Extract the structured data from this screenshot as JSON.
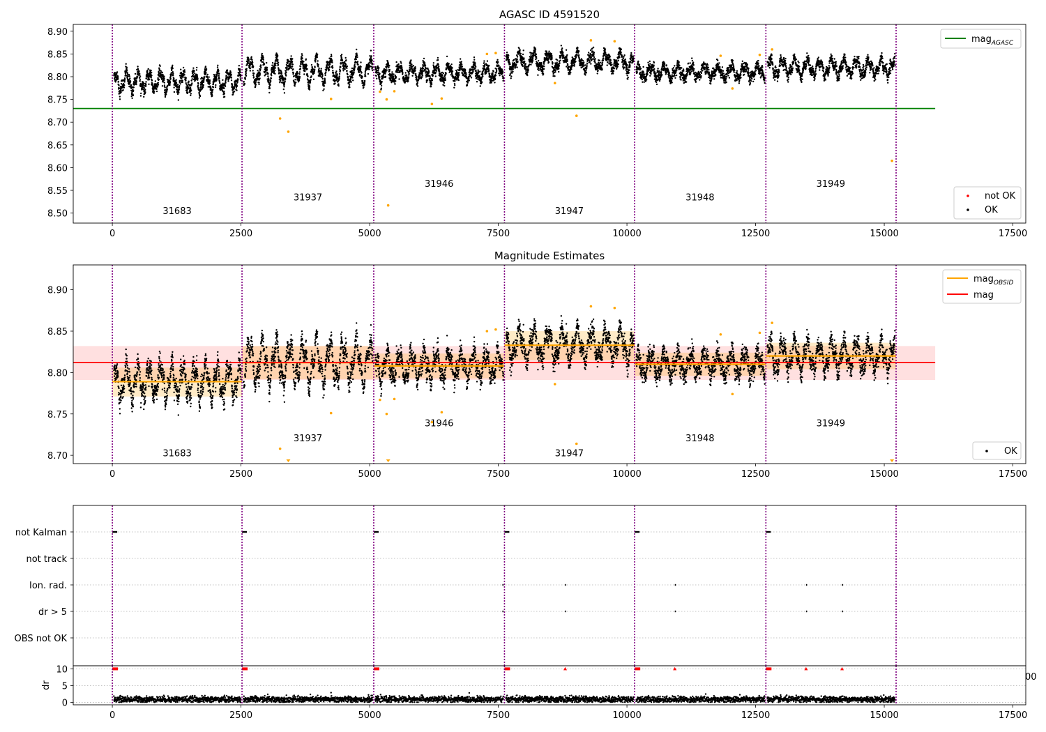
{
  "chart_data": [
    {
      "type": "scatter",
      "title": "AGASC ID 4591520",
      "xlim": [
        -760,
        17750
      ],
      "ylim": [
        8.478,
        8.915
      ],
      "xticks": [
        0,
        2500,
        5000,
        7500,
        10000,
        12500,
        15000,
        17500
      ],
      "yticks": [
        8.5,
        8.55,
        8.6,
        8.65,
        8.7,
        8.75,
        8.8,
        8.85,
        8.9
      ],
      "obsid_boundaries": [
        0,
        2520,
        5080,
        7620,
        10150,
        12700,
        15230
      ],
      "obsid_labels": [
        {
          "text": "31683",
          "x": 1260,
          "y": 8.498
        },
        {
          "text": "31937",
          "x": 3800,
          "y": 8.528
        },
        {
          "text": "31946",
          "x": 6350,
          "y": 8.558
        },
        {
          "text": "31947",
          "x": 8880,
          "y": 8.498
        },
        {
          "text": "31948",
          "x": 11420,
          "y": 8.528
        },
        {
          "text": "31949",
          "x": 13960,
          "y": 8.558
        }
      ],
      "mag_agasc": {
        "name": "mag$_{AGASC}$",
        "value": 8.73,
        "x_range": [
          -760,
          15990
        ],
        "color": "#008000"
      },
      "segment_means": [
        8.789,
        8.812,
        8.808,
        8.833,
        8.81,
        8.82
      ],
      "outliers": [
        {
          "x": 3260,
          "y": 8.708
        },
        {
          "x": 3420,
          "y": 8.679
        },
        {
          "x": 4250,
          "y": 8.751
        },
        {
          "x": 5330,
          "y": 8.75
        },
        {
          "x": 5360,
          "y": 8.517
        },
        {
          "x": 6210,
          "y": 8.74
        },
        {
          "x": 6400,
          "y": 8.752
        },
        {
          "x": 9020,
          "y": 8.714
        },
        {
          "x": 15150,
          "y": 8.615
        },
        {
          "x": 9300,
          "y": 8.88
        },
        {
          "x": 9760,
          "y": 8.878
        },
        {
          "x": 12820,
          "y": 8.86
        },
        {
          "x": 7280,
          "y": 8.85
        },
        {
          "x": 7450,
          "y": 8.852
        },
        {
          "x": 11820,
          "y": 8.846
        },
        {
          "x": 12050,
          "y": 8.774
        },
        {
          "x": 5200,
          "y": 8.767
        },
        {
          "x": 5480,
          "y": 8.768
        },
        {
          "x": 8600,
          "y": 8.786
        },
        {
          "x": 12580,
          "y": 8.848
        }
      ],
      "legends": [
        {
          "placement": "top-right",
          "entries": [
            {
              "label": "mag",
              "sub": "AGASC",
              "color": "#008000",
              "kind": "line"
            }
          ]
        },
        {
          "placement": "lower-right",
          "entries": [
            {
              "label": "not OK",
              "color": "#ff0000",
              "kind": "dot"
            },
            {
              "label": "OK",
              "color": "#000000",
              "kind": "dot"
            }
          ]
        }
      ]
    },
    {
      "type": "scatter",
      "title": "Magnitude Estimates",
      "xlim": [
        -760,
        17750
      ],
      "ylim": [
        8.69,
        8.93
      ],
      "xticks": [
        0,
        2500,
        5000,
        7500,
        10000,
        12500,
        15000,
        17500
      ],
      "yticks": [
        8.7,
        8.75,
        8.8,
        8.85,
        8.9
      ],
      "obsid_labels": [
        {
          "text": "31683",
          "x": 1260,
          "y": 8.699
        },
        {
          "text": "31937",
          "x": 3800,
          "y": 8.717
        },
        {
          "text": "31946",
          "x": 6350,
          "y": 8.735
        },
        {
          "text": "31947",
          "x": 8880,
          "y": 8.699
        },
        {
          "text": "31948",
          "x": 11420,
          "y": 8.717
        },
        {
          "text": "31949",
          "x": 13960,
          "y": 8.735
        }
      ],
      "mag": {
        "value": 8.812,
        "band": [
          8.791,
          8.832
        ],
        "x_range": [
          -760,
          15990
        ],
        "color": "#ff0000"
      },
      "mag_obsid": [
        {
          "x0": 0,
          "x1": 2520,
          "value": 8.789,
          "band": [
            8.771,
            8.806
          ]
        },
        {
          "x0": 2520,
          "x1": 5080,
          "value": 8.812,
          "band": [
            8.792,
            8.832
          ]
        },
        {
          "x0": 5080,
          "x1": 7620,
          "value": 8.808,
          "band": [
            8.793,
            8.823
          ]
        },
        {
          "x0": 7620,
          "x1": 10150,
          "value": 8.833,
          "band": [
            8.815,
            8.85
          ]
        },
        {
          "x0": 10150,
          "x1": 12700,
          "value": 8.81,
          "band": [
            8.796,
            8.824
          ]
        },
        {
          "x0": 12700,
          "x1": 15230,
          "value": 8.82,
          "band": [
            8.804,
            8.836
          ]
        }
      ],
      "below_limit_markers": [
        3420,
        5360,
        15150
      ],
      "legends": [
        {
          "placement": "top-right",
          "entries": [
            {
              "label": "mag",
              "sub": "OBSID",
              "color": "#ffa500",
              "kind": "line"
            },
            {
              "label": "mag",
              "sub": "",
              "color": "#ff0000",
              "kind": "line"
            }
          ]
        },
        {
          "placement": "lower-right",
          "entries": [
            {
              "label": "OK",
              "color": "#000000",
              "kind": "dot"
            }
          ]
        }
      ]
    },
    {
      "type": "scatter",
      "title": "",
      "xlim": [
        -760,
        17750
      ],
      "categories": [
        "not Kalman",
        "not track",
        "Ion. rad.",
        "dr > 5",
        "OBS not OK"
      ],
      "flags": {
        "not Kalman": [
          0,
          2520,
          5080,
          7620,
          10150,
          12700
        ],
        "not track": [],
        "Ion. rad.": [
          7580,
          8800,
          10930,
          13480,
          14180
        ],
        "dr > 5": [
          7580,
          8800,
          10930,
          13480,
          14180
        ],
        "OBS not OK": []
      }
    },
    {
      "type": "scatter",
      "title": "",
      "ylabel": "dr",
      "xlim": [
        -760,
        17750
      ],
      "ylim": [
        -0.3,
        10.5
      ],
      "xticks": [
        0,
        2500,
        5000,
        7500,
        10000,
        12500,
        15000,
        17500
      ],
      "yticks": [
        0,
        5,
        10
      ],
      "clipped_tick_text": "00",
      "capped_at_10": [
        0,
        2520,
        5080,
        7620,
        8800,
        10150,
        10930,
        12700,
        13480,
        14180
      ],
      "extra_points": [
        {
          "x": 3020,
          "y": 2.4
        },
        {
          "x": 4250,
          "y": 2.9
        },
        {
          "x": 11530,
          "y": 2.5
        },
        {
          "x": 8020,
          "y": 2.0
        }
      ]
    }
  ],
  "colors": {
    "ok": "#000000",
    "not_ok": "#ff0000",
    "outlier": "#ffa500",
    "boundary": "#800080",
    "agasc": "#008000",
    "mag": "#ff0000",
    "mag_obsid": "#ffa500"
  }
}
